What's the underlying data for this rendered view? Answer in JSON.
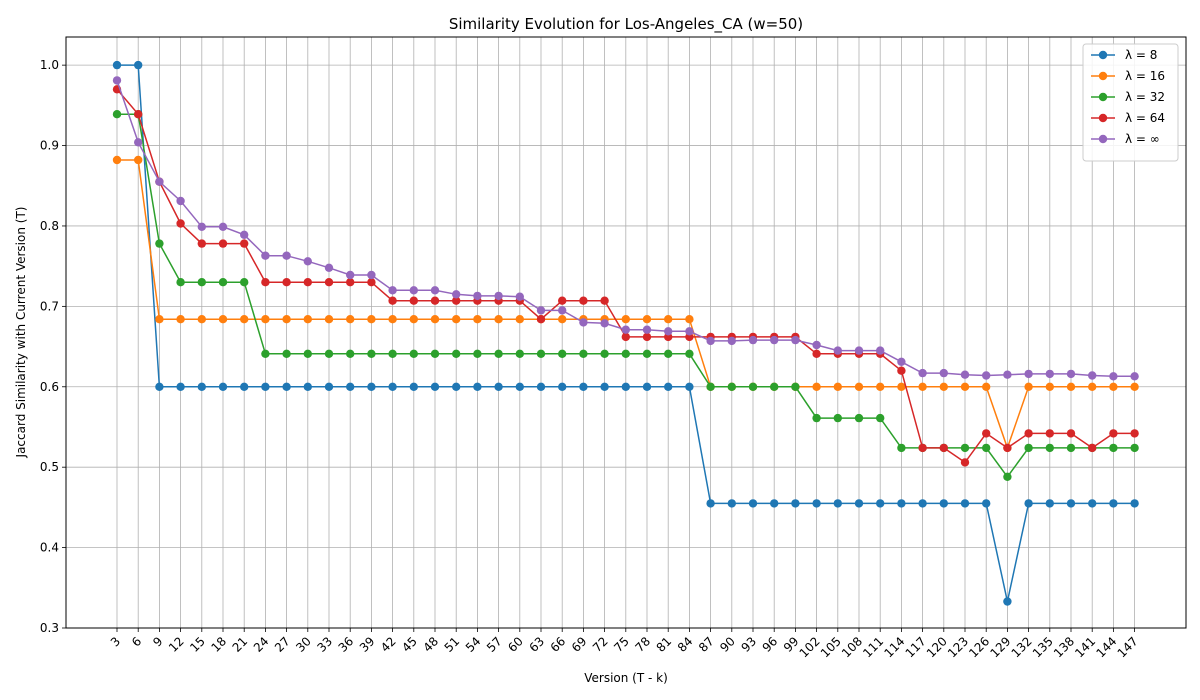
{
  "chart_data": {
    "type": "line",
    "title": "Similarity Evolution for Los-Angeles_CA (w=50)",
    "xlabel": "Version (T - k)",
    "ylabel": "Jaccard Similarity with Current Version (T)",
    "ylim": [
      0.3,
      1.035
    ],
    "yticks": [
      0.3,
      0.4,
      0.5,
      0.6,
      0.7,
      0.8,
      0.9,
      1.0
    ],
    "grid": true,
    "legend_position": "top-right",
    "x": [
      3,
      6,
      9,
      12,
      15,
      18,
      21,
      24,
      27,
      30,
      33,
      36,
      39,
      42,
      45,
      48,
      51,
      54,
      57,
      60,
      63,
      66,
      69,
      72,
      75,
      78,
      81,
      84,
      87,
      90,
      93,
      96,
      99,
      102,
      105,
      108,
      111,
      114,
      117,
      120,
      123,
      126,
      129,
      132,
      135,
      138,
      141,
      144,
      147
    ],
    "series": [
      {
        "name": "λ = 8",
        "color": "#1f77b4",
        "values": [
          1.0,
          1.0,
          0.6,
          0.6,
          0.6,
          0.6,
          0.6,
          0.6,
          0.6,
          0.6,
          0.6,
          0.6,
          0.6,
          0.6,
          0.6,
          0.6,
          0.6,
          0.6,
          0.6,
          0.6,
          0.6,
          0.6,
          0.6,
          0.6,
          0.6,
          0.6,
          0.6,
          0.6,
          0.455,
          0.455,
          0.455,
          0.455,
          0.455,
          0.455,
          0.455,
          0.455,
          0.455,
          0.455,
          0.455,
          0.455,
          0.455,
          0.455,
          0.333,
          0.455,
          0.455,
          0.455,
          0.455,
          0.455,
          0.455
        ]
      },
      {
        "name": "λ = 16",
        "color": "#ff7f0e",
        "values": [
          0.882,
          0.882,
          0.684,
          0.684,
          0.684,
          0.684,
          0.684,
          0.684,
          0.684,
          0.684,
          0.684,
          0.684,
          0.684,
          0.684,
          0.684,
          0.684,
          0.684,
          0.684,
          0.684,
          0.684,
          0.684,
          0.684,
          0.684,
          0.684,
          0.684,
          0.684,
          0.684,
          0.684,
          0.6,
          0.6,
          0.6,
          0.6,
          0.6,
          0.6,
          0.6,
          0.6,
          0.6,
          0.6,
          0.6,
          0.6,
          0.6,
          0.6,
          0.524,
          0.6,
          0.6,
          0.6,
          0.6,
          0.6,
          0.6
        ]
      },
      {
        "name": "λ = 32",
        "color": "#2ca02c",
        "values": [
          0.939,
          0.939,
          0.778,
          0.73,
          0.73,
          0.73,
          0.73,
          0.641,
          0.641,
          0.641,
          0.641,
          0.641,
          0.641,
          0.641,
          0.641,
          0.641,
          0.641,
          0.641,
          0.641,
          0.641,
          0.641,
          0.641,
          0.641,
          0.641,
          0.641,
          0.641,
          0.641,
          0.641,
          0.6,
          0.6,
          0.6,
          0.6,
          0.6,
          0.561,
          0.561,
          0.561,
          0.561,
          0.524,
          0.524,
          0.524,
          0.524,
          0.524,
          0.488,
          0.524,
          0.524,
          0.524,
          0.524,
          0.524,
          0.524
        ]
      },
      {
        "name": "λ = 64",
        "color": "#d62728",
        "values": [
          0.97,
          0.939,
          0.855,
          0.803,
          0.778,
          0.778,
          0.778,
          0.73,
          0.73,
          0.73,
          0.73,
          0.73,
          0.73,
          0.707,
          0.707,
          0.707,
          0.707,
          0.707,
          0.707,
          0.707,
          0.684,
          0.707,
          0.707,
          0.707,
          0.662,
          0.662,
          0.662,
          0.662,
          0.662,
          0.662,
          0.662,
          0.662,
          0.662,
          0.641,
          0.641,
          0.641,
          0.641,
          0.62,
          0.524,
          0.524,
          0.506,
          0.542,
          0.524,
          0.542,
          0.542,
          0.542,
          0.524,
          0.542,
          0.542
        ]
      },
      {
        "name": "λ = ∞",
        "color": "#9467bd",
        "values": [
          0.981,
          0.904,
          0.855,
          0.831,
          0.799,
          0.799,
          0.789,
          0.763,
          0.763,
          0.756,
          0.748,
          0.739,
          0.739,
          0.72,
          0.72,
          0.72,
          0.715,
          0.713,
          0.713,
          0.712,
          0.695,
          0.695,
          0.68,
          0.679,
          0.671,
          0.671,
          0.669,
          0.669,
          0.657,
          0.657,
          0.658,
          0.658,
          0.658,
          0.652,
          0.645,
          0.645,
          0.645,
          0.631,
          0.617,
          0.617,
          0.615,
          0.614,
          0.615,
          0.616,
          0.616,
          0.616,
          0.614,
          0.613,
          0.613
        ]
      }
    ]
  }
}
